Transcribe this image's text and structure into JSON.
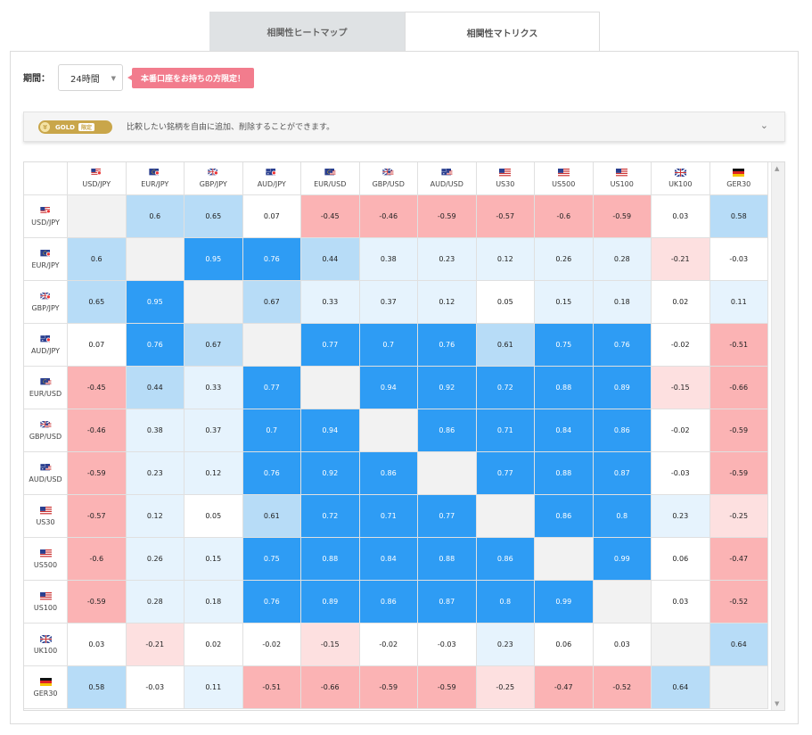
{
  "tabs": [
    {
      "label": "相関性ヒートマップ"
    },
    {
      "label": "相関性マトリクス"
    }
  ],
  "period": {
    "label": "期間：",
    "value": "24時間"
  },
  "badge": "本番口座をお持ちの方限定！",
  "gold": {
    "pill": "GOLD",
    "pill_tag": "限定",
    "text": "比較したい銘柄を自由に追加、削除することができます。"
  },
  "colors": {
    "strong_pos": "#2e9cf4",
    "pos": "#b7dcf7",
    "weak_pos": "#e6f3fd",
    "neutral": "#ffffff",
    "diag": "#f2f2f2",
    "weak_neg": "#fde0e0",
    "neg": "#fbb3b4"
  },
  "symbols": [
    "USD/JPY",
    "EUR/JPY",
    "GBP/JPY",
    "AUD/JPY",
    "EUR/USD",
    "GBP/USD",
    "AUD/USD",
    "US30",
    "US500",
    "US100",
    "UK100",
    "GER30"
  ],
  "flags": [
    "us-jp",
    "eu-jp",
    "gb-jp",
    "au-jp",
    "eu-us",
    "gb-us",
    "au-us",
    "us",
    "us",
    "us",
    "gb",
    "de"
  ],
  "matrix": [
    [
      null,
      0.6,
      0.65,
      0.07,
      -0.45,
      -0.46,
      -0.59,
      -0.57,
      -0.6,
      -0.59,
      0.03,
      0.58
    ],
    [
      0.6,
      null,
      0.95,
      0.76,
      0.44,
      0.38,
      0.23,
      0.12,
      0.26,
      0.28,
      -0.21,
      -0.03
    ],
    [
      0.65,
      0.95,
      null,
      0.67,
      0.33,
      0.37,
      0.12,
      0.05,
      0.15,
      0.18,
      0.02,
      0.11
    ],
    [
      0.07,
      0.76,
      0.67,
      null,
      0.77,
      0.7,
      0.76,
      0.61,
      0.75,
      0.76,
      -0.02,
      -0.51
    ],
    [
      -0.45,
      0.44,
      0.33,
      0.77,
      null,
      0.94,
      0.92,
      0.72,
      0.88,
      0.89,
      -0.15,
      -0.66
    ],
    [
      -0.46,
      0.38,
      0.37,
      0.7,
      0.94,
      null,
      0.86,
      0.71,
      0.84,
      0.86,
      -0.02,
      -0.59
    ],
    [
      -0.59,
      0.23,
      0.12,
      0.76,
      0.92,
      0.86,
      null,
      0.77,
      0.88,
      0.87,
      -0.03,
      -0.59
    ],
    [
      -0.57,
      0.12,
      0.05,
      0.61,
      0.72,
      0.71,
      0.77,
      null,
      0.86,
      0.8,
      0.23,
      -0.25
    ],
    [
      -0.6,
      0.26,
      0.15,
      0.75,
      0.88,
      0.84,
      0.88,
      0.86,
      null,
      0.99,
      0.06,
      -0.47
    ],
    [
      -0.59,
      0.28,
      0.18,
      0.76,
      0.89,
      0.86,
      0.87,
      0.8,
      0.99,
      null,
      0.03,
      -0.52
    ],
    [
      0.03,
      -0.21,
      0.02,
      -0.02,
      -0.15,
      -0.02,
      -0.03,
      0.23,
      0.06,
      0.03,
      null,
      0.64
    ],
    [
      0.58,
      -0.03,
      0.11,
      -0.51,
      -0.66,
      -0.59,
      -0.59,
      -0.25,
      -0.47,
      -0.52,
      0.64,
      null
    ]
  ]
}
